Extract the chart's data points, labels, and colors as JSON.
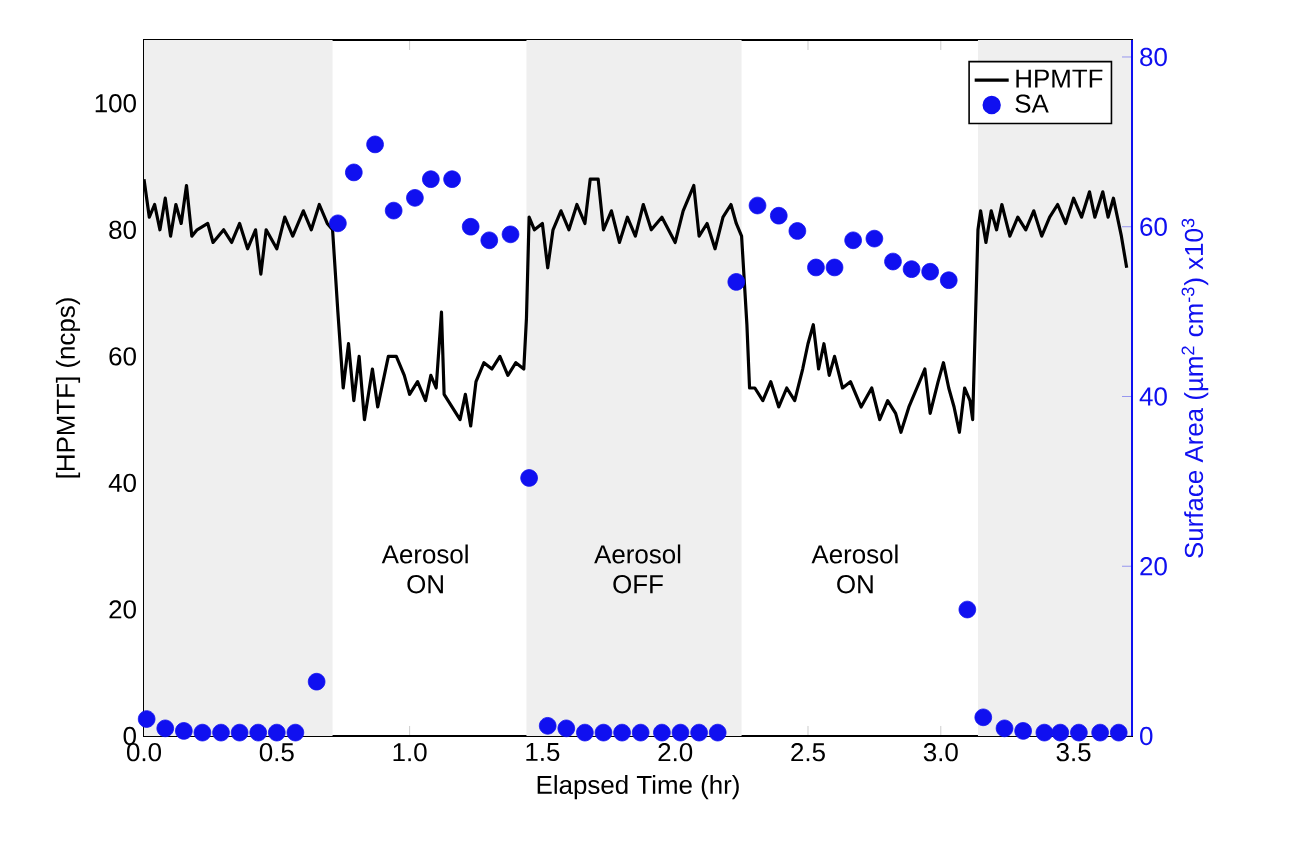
{
  "chart_data": {
    "type": "line",
    "xlabel": "Elapsed Time (hr)",
    "ylabel": "[HPMTF] (ncps)",
    "y2label": "Surface Area (µm$^{2}$ cm$^{-3}$) x10$^{3}$",
    "xlim": [
      0,
      3.72
    ],
    "ylim": [
      0,
      110
    ],
    "y2lim": [
      0,
      82
    ],
    "xticks": [
      {
        "value": 0,
        "label": "0.0"
      },
      {
        "value": 0.5,
        "label": "0.5"
      },
      {
        "value": 1,
        "label": "1.0"
      },
      {
        "value": 1.5,
        "label": "1.5"
      },
      {
        "value": 2,
        "label": "2.0"
      },
      {
        "value": 2.5,
        "label": "2.5"
      },
      {
        "value": 3,
        "label": "3.0"
      },
      {
        "value": 3.5,
        "label": "3.5"
      }
    ],
    "yticks": [
      0,
      20,
      40,
      60,
      80,
      100
    ],
    "y2ticks": [
      0,
      20,
      40,
      60,
      80
    ],
    "legend": "top right",
    "grid": false,
    "bands": [
      {
        "axis": "x",
        "from": 0,
        "to": 0.71,
        "color": "#efefef"
      },
      {
        "axis": "x",
        "from": 1.44,
        "to": 2.25,
        "color": "#efefef"
      },
      {
        "axis": "x",
        "from": 3.14,
        "to": 3.72,
        "color": "#efefef"
      }
    ],
    "annotations": [
      "Aerosol ON",
      "Aerosol OFF",
      "Aerosol ON"
    ],
    "series": [
      {
        "name": "HPMTF",
        "color": "#000000",
        "marker": "none",
        "line_style": "solid",
        "x": [
          0.0,
          0.02,
          0.04,
          0.06,
          0.08,
          0.1,
          0.12,
          0.14,
          0.16,
          0.18,
          0.2,
          0.24,
          0.26,
          0.3,
          0.33,
          0.36,
          0.39,
          0.42,
          0.44,
          0.46,
          0.5,
          0.53,
          0.56,
          0.6,
          0.63,
          0.66,
          0.69,
          0.71,
          0.73,
          0.75,
          0.77,
          0.79,
          0.81,
          0.83,
          0.86,
          0.88,
          0.9,
          0.92,
          0.95,
          0.98,
          1.0,
          1.03,
          1.06,
          1.08,
          1.1,
          1.12,
          1.13,
          1.16,
          1.19,
          1.21,
          1.23,
          1.25,
          1.28,
          1.31,
          1.34,
          1.37,
          1.4,
          1.43,
          1.44,
          1.45,
          1.47,
          1.5,
          1.52,
          1.54,
          1.57,
          1.6,
          1.63,
          1.66,
          1.68,
          1.71,
          1.73,
          1.76,
          1.79,
          1.82,
          1.85,
          1.88,
          1.91,
          1.95,
          2.0,
          2.03,
          2.07,
          2.09,
          2.12,
          2.15,
          2.18,
          2.21,
          2.23,
          2.25,
          2.27,
          2.28,
          2.3,
          2.33,
          2.36,
          2.39,
          2.42,
          2.45,
          2.48,
          2.5,
          2.52,
          2.54,
          2.56,
          2.58,
          2.6,
          2.63,
          2.66,
          2.7,
          2.74,
          2.77,
          2.8,
          2.83,
          2.85,
          2.88,
          2.91,
          2.94,
          2.96,
          2.99,
          3.01,
          3.03,
          3.05,
          3.07,
          3.09,
          3.11,
          3.12,
          3.14,
          3.15,
          3.17,
          3.19,
          3.21,
          3.23,
          3.26,
          3.29,
          3.32,
          3.35,
          3.38,
          3.41,
          3.44,
          3.47,
          3.5,
          3.53,
          3.56,
          3.58,
          3.61,
          3.63,
          3.65,
          3.68,
          3.7
        ],
        "values": [
          88,
          82,
          84,
          80,
          85,
          79,
          84,
          81,
          87,
          79,
          80,
          81,
          78,
          80,
          78,
          81,
          77,
          80,
          73,
          80,
          77,
          82,
          79,
          83,
          80,
          84,
          81,
          80,
          67,
          55,
          62,
          53,
          60,
          50,
          58,
          52,
          56,
          60,
          60,
          57,
          54,
          56,
          53,
          57,
          55,
          67,
          54,
          52,
          50,
          54,
          49,
          56,
          59,
          58,
          60,
          57,
          59,
          58,
          66,
          82,
          80,
          81,
          74,
          80,
          83,
          80,
          84,
          81,
          88,
          88,
          80,
          83,
          78,
          82,
          79,
          84,
          80,
          82,
          78,
          83,
          87,
          79,
          81,
          77,
          82,
          84,
          81,
          79,
          65,
          55,
          55,
          53,
          56,
          52,
          55,
          53,
          58,
          62,
          65,
          58,
          62,
          57,
          60,
          55,
          56,
          52,
          55,
          50,
          53,
          51,
          48,
          52,
          55,
          58,
          51,
          56,
          59,
          55,
          52,
          48,
          55,
          53,
          50,
          80,
          83,
          78,
          83,
          80,
          84,
          79,
          82,
          80,
          83,
          79,
          82,
          84,
          81,
          85,
          82,
          86,
          82,
          86,
          82,
          85,
          79,
          74
        ]
      },
      {
        "name": "SA",
        "type": "scatter",
        "axis": "y2",
        "color": "#1010f0",
        "marker": "circle",
        "x": [
          0.01,
          0.08,
          0.15,
          0.22,
          0.29,
          0.36,
          0.43,
          0.5,
          0.57,
          0.65,
          0.73,
          0.79,
          0.87,
          0.94,
          1.02,
          1.08,
          1.16,
          1.23,
          1.3,
          1.38,
          1.45,
          1.52,
          1.59,
          1.66,
          1.73,
          1.8,
          1.87,
          1.95,
          2.02,
          2.09,
          2.16,
          2.23,
          2.31,
          2.39,
          2.46,
          2.53,
          2.6,
          2.67,
          2.75,
          2.82,
          2.89,
          2.96,
          3.03,
          3.1,
          3.16,
          3.24,
          3.31,
          3.39,
          3.45,
          3.52,
          3.6,
          3.67
        ],
        "values": [
          2.0,
          0.9,
          0.6,
          0.4,
          0.4,
          0.4,
          0.4,
          0.4,
          0.4,
          6.4,
          60.4,
          66.4,
          69.7,
          61.9,
          63.4,
          65.6,
          65.6,
          60.0,
          58.4,
          59.1,
          30.4,
          1.2,
          0.9,
          0.4,
          0.4,
          0.4,
          0.4,
          0.4,
          0.4,
          0.4,
          0.4,
          53.5,
          62.5,
          61.3,
          59.5,
          55.2,
          55.2,
          58.4,
          58.6,
          55.9,
          55.0,
          54.7,
          53.7,
          14.9,
          2.2,
          0.9,
          0.6,
          0.4,
          0.4,
          0.4,
          0.4,
          0.4
        ]
      }
    ]
  }
}
